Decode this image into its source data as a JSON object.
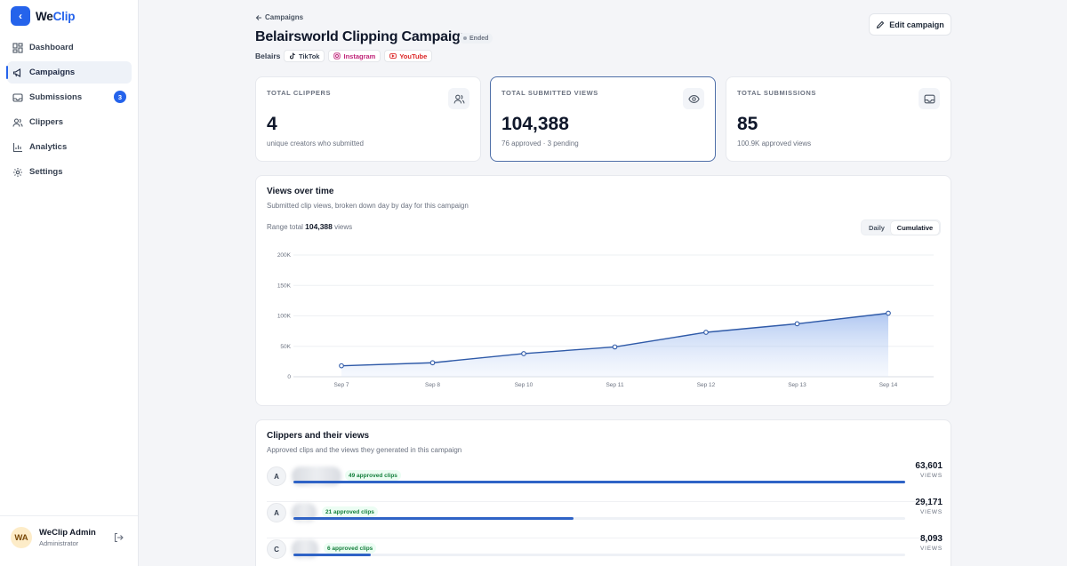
{
  "brand": {
    "name_prefix": "We",
    "name_accent": "Clip",
    "back_glyph": "‹"
  },
  "nav": {
    "items": [
      {
        "label": "Dashboard",
        "icon": "dashboard-icon",
        "active": false
      },
      {
        "label": "Campaigns",
        "icon": "megaphone-icon",
        "active": true
      },
      {
        "label": "Submissions",
        "icon": "inbox-icon",
        "active": false,
        "badge": "3"
      },
      {
        "label": "Clippers",
        "icon": "users-icon",
        "active": false
      },
      {
        "label": "Analytics",
        "icon": "bar-chart-icon",
        "active": false
      },
      {
        "label": "Settings",
        "icon": "gear-icon",
        "active": false
      }
    ]
  },
  "user": {
    "initials": "WA",
    "name": "WeClip Admin",
    "role": "Administrator"
  },
  "breadcrumb": {
    "back_label": "Campaigns"
  },
  "campaign": {
    "title": "Belairsworld Clipping Campaign",
    "status": "Ended",
    "brand": "Belairs",
    "platforms": [
      {
        "label": "TikTok",
        "icon": "tiktok-icon",
        "color": "#374151"
      },
      {
        "label": "Instagram",
        "icon": "instagram-icon",
        "color": "#c0267a"
      },
      {
        "label": "YouTube",
        "icon": "youtube-icon",
        "color": "#dc2626"
      }
    ]
  },
  "actions": {
    "edit_label": "Edit campaign"
  },
  "stats": {
    "clippers": {
      "label": "TOTAL CLIPPERS",
      "value": "4",
      "sub": "unique creators who submitted",
      "icon": "users-icon"
    },
    "views": {
      "label": "TOTAL SUBMITTED VIEWS",
      "value": "104,388",
      "sub": "76 approved · 3 pending",
      "icon": "eye-icon"
    },
    "submissions": {
      "label": "TOTAL SUBMISSIONS",
      "value": "85",
      "sub": "100.9K approved views",
      "icon": "inbox-icon"
    }
  },
  "views_chart": {
    "title": "Views over time",
    "subtitle": "Submitted clip views, broken down day by day for this campaign",
    "range_prefix": "Range total",
    "range_value": "104,388",
    "range_suffix": "views",
    "toggle": {
      "daily": "Daily",
      "cumulative": "Cumulative",
      "selected": "Cumulative"
    }
  },
  "chart_data": {
    "type": "area",
    "categories": [
      "Sep 7",
      "Sep 8",
      "Sep 10",
      "Sep 11",
      "Sep 12",
      "Sep 13",
      "Sep 14"
    ],
    "values": [
      18000,
      23000,
      38000,
      49000,
      73000,
      87000,
      104388
    ],
    "yticks": [
      "200K",
      "150K",
      "100K",
      "50K",
      "0"
    ],
    "ylim": [
      0,
      200000
    ],
    "grid": true,
    "color": "#2f5aa8"
  },
  "clippers": {
    "title": "Clippers and their views",
    "subtitle": "Approved clips and the views they generated in this campaign",
    "views_label": "VIEWS",
    "rows": [
      {
        "initial": "A",
        "clips": "49 approved clips",
        "views": "63,601",
        "share": 1.0
      },
      {
        "initial": "A",
        "clips": "21 approved clips",
        "views": "29,171",
        "share": 0.458
      },
      {
        "initial": "C",
        "clips": "6 approved clips",
        "views": "8,093",
        "share": 0.127
      }
    ]
  }
}
